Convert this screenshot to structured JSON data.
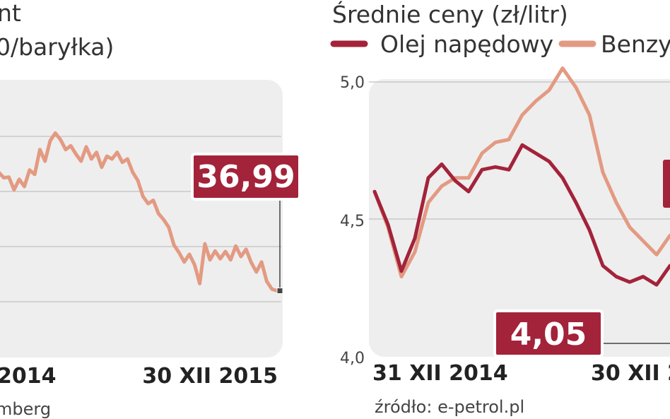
{
  "colors": {
    "brent_line": "#e39a82",
    "diesel_line": "#a3233a",
    "petrol_line": "#e39a82",
    "callout_bg": "#a3233a",
    "panel_bg": "#eeeeee",
    "grid": "#c9c9c9"
  },
  "left_chart": {
    "title_fragment": "nt",
    "unit_fragment": "0/baryłka)",
    "date_start_fragment": "2014",
    "date_end": "30 XII 2015",
    "source_fragment": "mberg",
    "callout_value": "36,99"
  },
  "right_chart": {
    "title": "Średnie ceny (zł/litr)",
    "legend": [
      {
        "label": "Olej napędowy",
        "color": "#a3233a"
      },
      {
        "label": "Benzyn",
        "color": "#e39a82"
      }
    ],
    "y_ticks": [
      "5,0",
      "4,5",
      "4,0"
    ],
    "date_start": "31 XII 2014",
    "date_end_fragment": "30 XII 2",
    "source": "źródło: e-petrol.pl",
    "callout_value": "4,05"
  },
  "chart_data": [
    {
      "type": "line",
      "title": "",
      "ylabel": "",
      "series": [
        {
          "values": [
            58.5,
            57.5,
            57.6,
            55.3,
            57.2,
            55.9,
            58.9,
            58.1,
            62.6,
            60.5,
            64.2,
            65.6,
            64.4,
            62.6,
            63.3,
            61.8,
            60.5,
            63.1,
            60.9,
            62.1,
            59.4,
            61.4,
            60.9,
            62.1,
            60.3,
            60.9,
            58.5,
            57.0,
            54.1,
            52.8,
            53.4,
            51.0,
            49.9,
            48.5,
            45.3,
            43.9,
            42.2,
            43.6,
            41.7,
            38.3,
            45.5,
            42.6,
            44.2,
            42.8,
            44.1,
            42.6,
            45.1,
            43.2,
            44.5,
            42.1,
            40.4,
            42.2,
            38.7,
            37.3,
            36.99
          ]
        }
      ]
    },
    {
      "type": "line",
      "title": "Średnie ceny (zł/litr)",
      "ylim": [
        4.0,
        5.0
      ],
      "yticks": [
        4.0,
        4.5,
        5.0
      ],
      "series": [
        {
          "name": "Olej napędowy",
          "color": "#a3233a",
          "values": [
            4.6,
            4.48,
            4.31,
            4.43,
            4.65,
            4.7,
            4.64,
            4.6,
            4.68,
            4.69,
            4.68,
            4.77,
            4.74,
            4.71,
            4.65,
            4.56,
            4.46,
            4.33,
            4.29,
            4.27,
            4.29,
            4.26,
            4.33
          ]
        },
        {
          "name": "Benzyn",
          "color": "#e39a82",
          "values": [
            4.6,
            4.47,
            4.29,
            4.38,
            4.56,
            4.62,
            4.65,
            4.65,
            4.74,
            4.78,
            4.79,
            4.88,
            4.93,
            4.97,
            5.05,
            4.98,
            4.88,
            4.67,
            4.56,
            4.47,
            4.42,
            4.37,
            4.44
          ]
        }
      ]
    }
  ]
}
